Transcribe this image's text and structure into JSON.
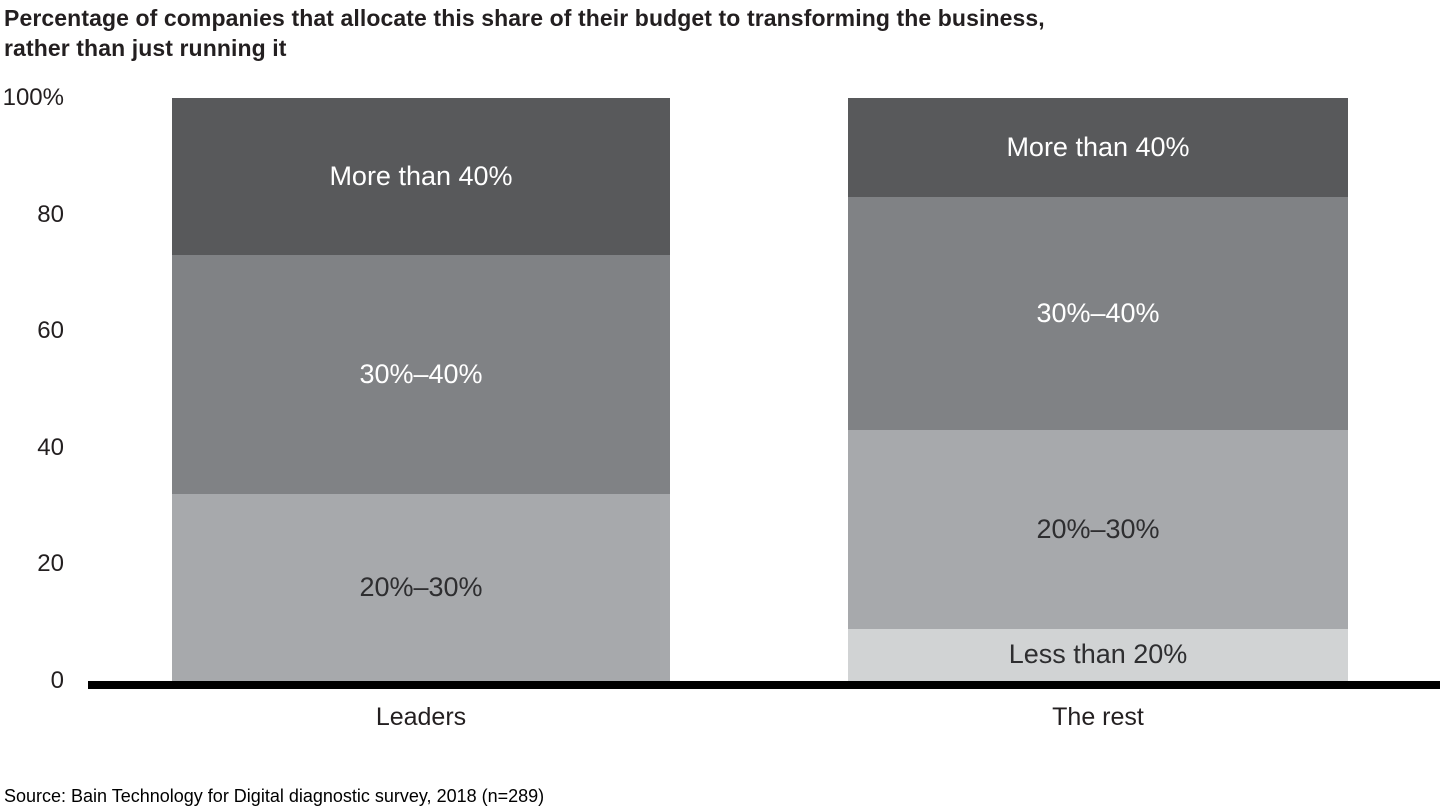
{
  "header": {
    "title_line1": "Percentage of companies that allocate this share of their budget to transforming the business,",
    "title_line2": "rather than just running it"
  },
  "chart_data": {
    "type": "bar",
    "stacked": true,
    "orientation": "vertical",
    "title": "Percentage of companies that allocate this share of their budget to transforming the business, rather than just running it",
    "categories": [
      "Leaders",
      "The rest"
    ],
    "series": [
      {
        "name": "More than 40%",
        "values": [
          27,
          17
        ],
        "color": "#58595b",
        "label_color": "#ffffff"
      },
      {
        "name": "30%–40%",
        "values": [
          41,
          40
        ],
        "color": "#808285",
        "label_color": "#ffffff"
      },
      {
        "name": "20%–30%",
        "values": [
          32,
          34
        ],
        "color": "#a7a9ac",
        "label_color": "#2e2e30"
      },
      {
        "name": "Less than 20%",
        "values": [
          0,
          9
        ],
        "color": "#d1d3d4",
        "label_color": "#2e2e30"
      }
    ],
    "ylim": [
      0,
      100
    ],
    "yticks": [
      {
        "label": "100%",
        "value": 100
      },
      {
        "label": "80",
        "value": 80
      },
      {
        "label": "60",
        "value": 60
      },
      {
        "label": "40",
        "value": 40
      },
      {
        "label": "20",
        "value": 20
      },
      {
        "label": "0",
        "value": 0
      }
    ],
    "grid": false,
    "legend": "none",
    "source": "Source: Bain Technology for Digital diagnostic survey, 2018 (n=289)"
  }
}
